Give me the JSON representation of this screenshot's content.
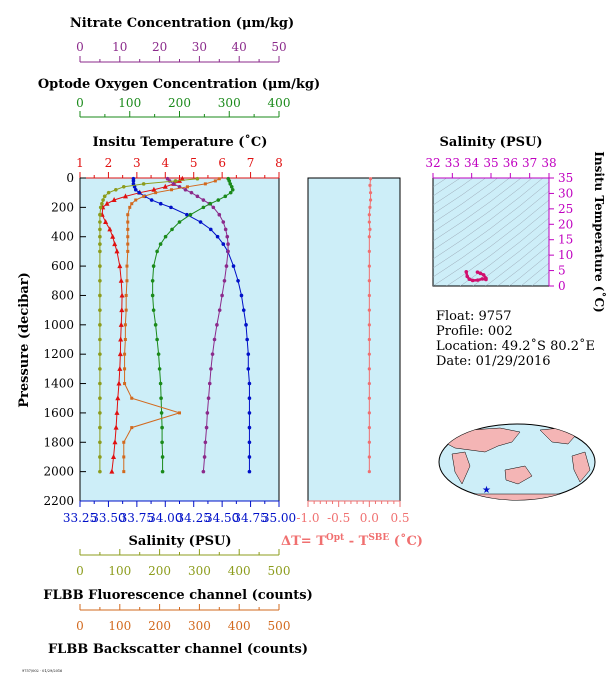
{
  "colors": {
    "nitrate": "#8b2a8b",
    "oxygen": "#1a8a1a",
    "temperature": "#e01010",
    "salinity": "#0010c8",
    "fluorescence": "#8c9c1c",
    "backscatter": "#d2691e",
    "delta": "#f07070",
    "salinity_axis2": "#c000c0",
    "panel_bg": "#cdeef8",
    "map_land": "#f4b5b5",
    "map_sea": "#cdeef8"
  },
  "axes": {
    "nitrate": {
      "title": "Nitrate Concentration (μm/kg)",
      "ticks": [
        "0",
        "10",
        "20",
        "30",
        "40",
        "50"
      ]
    },
    "oxygen": {
      "title": "Optode Oxygen Concentration (μm/kg)",
      "ticks": [
        "0",
        "100",
        "200",
        "300",
        "400"
      ]
    },
    "temperature": {
      "title": "Insitu Temperature (˚C)",
      "ticks": [
        "1",
        "2",
        "3",
        "4",
        "5",
        "6",
        "7",
        "8"
      ]
    },
    "pressure": {
      "title": "Pressure (decibar)",
      "ticks": [
        "0",
        "200",
        "400",
        "600",
        "800",
        "1000",
        "1200",
        "1400",
        "1600",
        "1800",
        "2000",
        "2200"
      ]
    },
    "salinity": {
      "title": "Salinity (PSU)",
      "ticks": [
        "33.25",
        "33.50",
        "33.75",
        "34.00",
        "34.25",
        "34.50",
        "34.75",
        "35.00"
      ]
    },
    "fluorescence": {
      "title": "FLBB Fluorescence channel (counts)",
      "ticks": [
        "0",
        "100",
        "200",
        "300",
        "400",
        "500"
      ]
    },
    "backscatter": {
      "title": "FLBB Backscatter channel (counts)",
      "ticks": [
        "0",
        "100",
        "200",
        "300",
        "400",
        "500"
      ]
    },
    "delta": {
      "title_main": "ΔT= T",
      "title_sup1": "Opt",
      "title_mid": " - T",
      "title_sup2": "SBE",
      "title_end": " (˚C)",
      "ticks": [
        "-1.0",
        "-0.5",
        "0.0",
        "0.5"
      ]
    },
    "ts_salinity": {
      "title": "Salinity (PSU)",
      "ticks": [
        "32",
        "33",
        "34",
        "35",
        "36",
        "37",
        "38"
      ]
    },
    "ts_temperature": {
      "title": "Insitu Temperature (˚C)",
      "ticks": [
        "0",
        "5",
        "10",
        "15",
        "20",
        "25",
        "30",
        "35"
      ]
    }
  },
  "info": {
    "float": "Float:  9757",
    "profile": "Profile:  002",
    "location": "Location:  49.2˚S  80.2˚E",
    "date": "Date:  01/29/2016"
  },
  "footer": "9757/002 · 01/29/2016",
  "chart_data": [
    {
      "type": "line",
      "name": "main_profile",
      "ylabel": "Pressure (decibar)",
      "ylim": [
        2200,
        0
      ],
      "pressure": [
        5,
        20,
        40,
        60,
        80,
        100,
        125,
        150,
        175,
        200,
        250,
        300,
        350,
        400,
        450,
        500,
        600,
        700,
        800,
        900,
        1000,
        1100,
        1200,
        1300,
        1400,
        1500,
        1600,
        1700,
        1800,
        1900,
        2000
      ],
      "series": [
        {
          "name": "Insitu Temperature",
          "unit": "˚C",
          "xlim": [
            1,
            8
          ],
          "values": [
            4.6,
            4.5,
            4.3,
            4.0,
            3.6,
            3.1,
            2.6,
            2.2,
            1.95,
            1.8,
            1.78,
            1.9,
            2.05,
            2.15,
            2.22,
            2.3,
            2.4,
            2.45,
            2.48,
            2.47,
            2.45,
            2.43,
            2.42,
            2.4,
            2.37,
            2.33,
            2.3,
            2.27,
            2.23,
            2.18,
            2.12
          ]
        },
        {
          "name": "Salinity",
          "unit": "PSU",
          "xlim": [
            33.25,
            35.0
          ],
          "values": [
            33.72,
            33.72,
            33.72,
            33.73,
            33.74,
            33.77,
            33.82,
            33.88,
            33.96,
            34.05,
            34.19,
            34.31,
            34.4,
            34.46,
            34.51,
            34.55,
            34.6,
            34.64,
            34.67,
            34.69,
            34.71,
            34.72,
            34.73,
            34.73,
            34.74,
            34.74,
            34.74,
            34.74,
            34.74,
            34.74,
            34.74
          ]
        },
        {
          "name": "Nitrate Concentration",
          "unit": "μm/kg",
          "xlim": [
            0,
            50
          ],
          "values": [
            22,
            22.5,
            23.5,
            25,
            26.5,
            28,
            29.5,
            31,
            32.5,
            33.5,
            35,
            36,
            36.6,
            37,
            37.2,
            37.2,
            36.8,
            36.3,
            35.7,
            35.1,
            34.4,
            33.8,
            33.3,
            32.9,
            32.6,
            32.3,
            32.0,
            31.8,
            31.5,
            31.3,
            31.0
          ]
        },
        {
          "name": "Optode Oxygen Concentration",
          "unit": "μm/kg",
          "xlim": [
            0,
            400
          ],
          "values": [
            298,
            300,
            302,
            305,
            307,
            303,
            292,
            278,
            262,
            248,
            222,
            200,
            185,
            172,
            162,
            155,
            148,
            146,
            146,
            148,
            152,
            155,
            158,
            160,
            162,
            163,
            164,
            165,
            165,
            166,
            166
          ]
        },
        {
          "name": "FLBB Fluorescence channel",
          "unit": "counts",
          "xlim": [
            0,
            500
          ],
          "values": [
            295,
            240,
            160,
            110,
            90,
            72,
            62,
            58,
            55,
            52,
            50,
            50,
            50,
            50,
            50,
            50,
            50,
            50,
            50,
            50,
            50,
            50,
            50,
            50,
            50,
            50,
            50,
            50,
            50,
            50,
            50
          ]
        },
        {
          "name": "FLBB Backscatter channel",
          "unit": "counts",
          "xlim": [
            0,
            500
          ],
          "values": [
            350,
            340,
            315,
            270,
            230,
            190,
            160,
            140,
            130,
            125,
            120,
            120,
            120,
            120,
            120,
            120,
            118,
            118,
            116,
            116,
            114,
            114,
            112,
            112,
            112,
            130,
            250,
            130,
            110,
            110,
            110
          ]
        }
      ]
    },
    {
      "type": "line",
      "name": "delta_T",
      "xlabel": "ΔT",
      "xlim": [
        -1.0,
        0.5
      ],
      "ylim": [
        2200,
        0
      ],
      "pressure": [
        5,
        50,
        100,
        150,
        200,
        250,
        300,
        350,
        400,
        500,
        600,
        700,
        800,
        900,
        1000,
        1100,
        1200,
        1300,
        1400,
        1500,
        1600,
        1700,
        1800,
        1900,
        2000
      ],
      "values": [
        0.02,
        0.01,
        0.02,
        0.02,
        0.01,
        0.0,
        0.0,
        0.01,
        0.0,
        0.0,
        0.0,
        0.0,
        0.0,
        0.0,
        0.0,
        0.0,
        0.0,
        0.0,
        0.0,
        0.0,
        0.0,
        0.0,
        0.0,
        0.0,
        0.0
      ]
    },
    {
      "type": "scatter",
      "name": "TS_diagram",
      "xlabel": "Salinity (PSU)",
      "ylabel": "Insitu Temperature (˚C)",
      "xlim": [
        32,
        38
      ],
      "ylim": [
        0,
        35
      ],
      "x": [
        33.72,
        33.77,
        33.88,
        34.05,
        34.31,
        34.55,
        34.74,
        34.74,
        34.62,
        34.45,
        34.3
      ],
      "y": [
        4.6,
        3.1,
        2.2,
        1.8,
        1.9,
        2.3,
        2.1,
        2.5,
        3.6,
        4.1,
        4.5
      ]
    }
  ]
}
